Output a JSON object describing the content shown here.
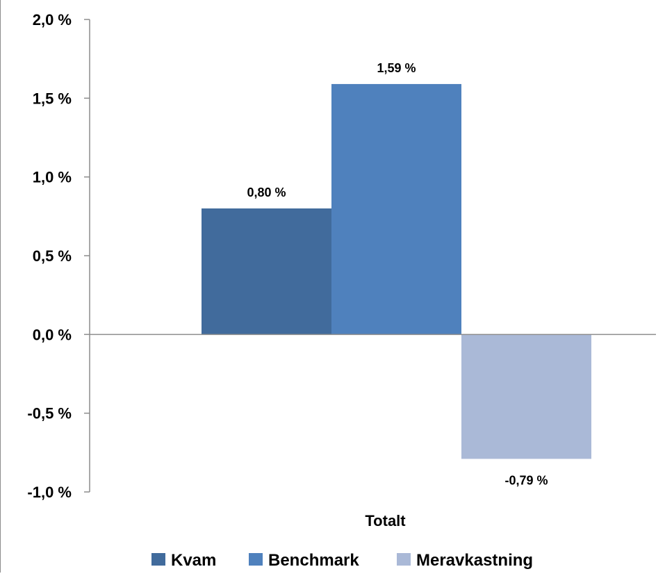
{
  "chart_data": {
    "type": "bar",
    "categories": [
      "Totalt"
    ],
    "series": [
      {
        "name": "Kvam",
        "values": [
          0.8
        ],
        "label": "0,80 %",
        "color": "#416b9c"
      },
      {
        "name": "Benchmark",
        "values": [
          1.59
        ],
        "label": "1,59 %",
        "color": "#4f81bd"
      },
      {
        "name": "Meravkastning",
        "values": [
          -0.79
        ],
        "label": "-0,79 %",
        "color": "#aab9d7"
      }
    ],
    "title": "",
    "xlabel": "",
    "ylabel": "",
    "ylim": [
      -1.0,
      2.0
    ],
    "yticks": [
      2.0,
      1.5,
      1.0,
      0.5,
      0.0,
      -0.5,
      -1.0
    ],
    "ytick_labels": [
      "2,0 %",
      "1,5 %",
      "1,0 %",
      "0,5 %",
      "0,0 %",
      "-0,5 %",
      "-1,0 %"
    ],
    "grid": false,
    "legend_position": "bottom",
    "axis_color": "#8c8c8c"
  }
}
